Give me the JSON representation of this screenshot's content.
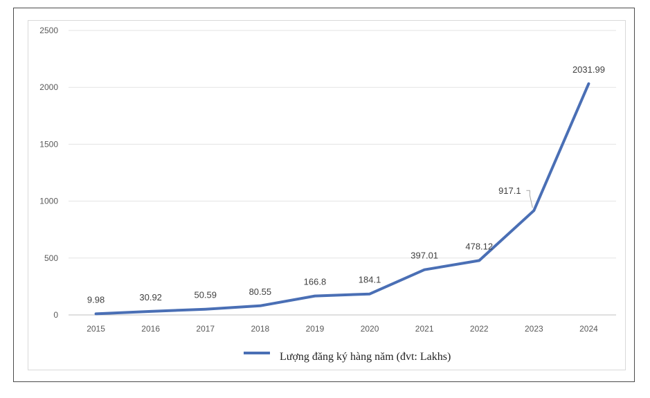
{
  "chart_data": {
    "type": "line",
    "title": "",
    "xlabel": "",
    "ylabel": "",
    "categories": [
      "2015",
      "2016",
      "2017",
      "2018",
      "2019",
      "2020",
      "2021",
      "2022",
      "2023",
      "2024"
    ],
    "series": [
      {
        "name": "Lượng đăng ký hàng năm (đvt: Lakhs)",
        "values": [
          9.98,
          30.92,
          50.59,
          80.55,
          166.8,
          184.1,
          397.01,
          478.12,
          917.1,
          2031.99
        ],
        "labels": [
          "9.98",
          "30.92",
          "50.59",
          "80.55",
          "166.8",
          "184.1",
          "397.01",
          "478.12",
          "917.1",
          "2031.99"
        ],
        "color": "#4a6fb5"
      }
    ],
    "ylim": [
      0,
      2500
    ],
    "yticks": [
      0,
      500,
      1000,
      1500,
      2000,
      2500
    ],
    "grid": true,
    "legend_position": "bottom"
  }
}
